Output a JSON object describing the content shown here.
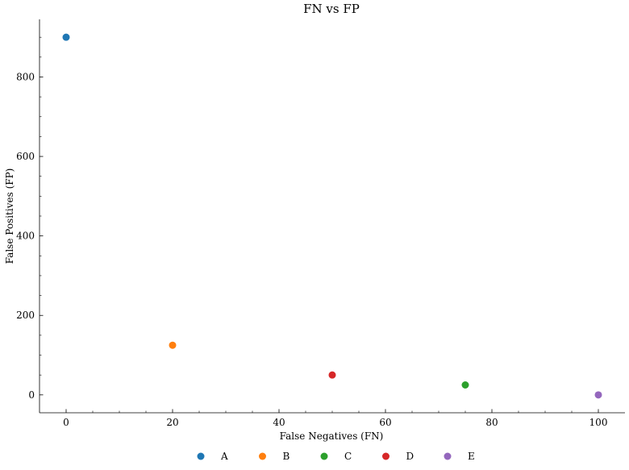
{
  "chart_data": {
    "type": "scatter",
    "title": "FN vs FP",
    "xlabel": "False Negatives (FN)",
    "ylabel": "False Positives (FP)",
    "xlim": [
      -5,
      105
    ],
    "ylim": [
      -45,
      945
    ],
    "xticks": [
      0,
      20,
      40,
      60,
      80,
      100
    ],
    "yticks": [
      0,
      200,
      400,
      600,
      800
    ],
    "grid": false,
    "legend_position": "bottom-center",
    "series": [
      {
        "name": "A",
        "x": 0,
        "y": 900,
        "color": "#1f77b4"
      },
      {
        "name": "B",
        "x": 20,
        "y": 125,
        "color": "#ff7f0e"
      },
      {
        "name": "C",
        "x": 75,
        "y": 25,
        "color": "#2ca02c"
      },
      {
        "name": "D",
        "x": 50,
        "y": 50,
        "color": "#d62728"
      },
      {
        "name": "E",
        "x": 100,
        "y": 0,
        "color": "#9467bd"
      }
    ]
  }
}
